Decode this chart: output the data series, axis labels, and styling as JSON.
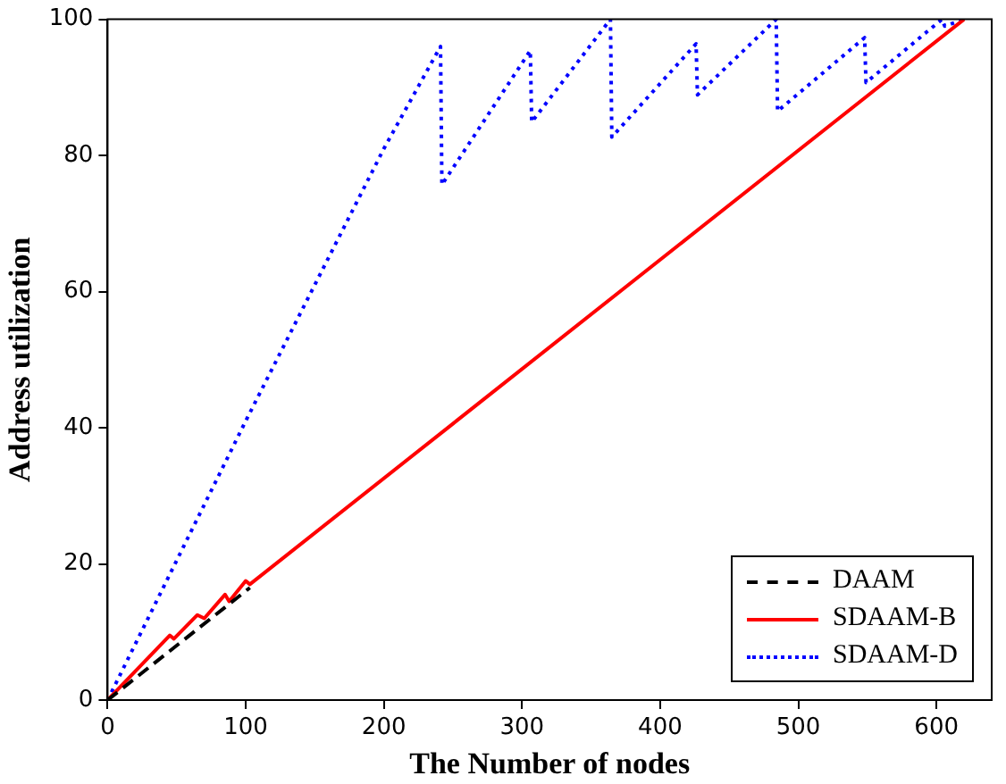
{
  "chart_data": {
    "type": "line",
    "xlabel": "The Number of nodes",
    "ylabel": "Address utilization",
    "xlim": [
      0,
      640
    ],
    "xticks": [
      0,
      100,
      200,
      300,
      400,
      500,
      600
    ],
    "ylim": [
      0,
      100
    ],
    "yticks": [
      0,
      20,
      40,
      60,
      80,
      100
    ],
    "legend": "bottom right",
    "marker": "none",
    "grid": false,
    "series": [
      {
        "name": "DAAM",
        "color": "#000000",
        "line_style": "dashed",
        "x": [
          0,
          103
        ],
        "values": [
          0,
          16.5
        ]
      },
      {
        "name": "SDAAM-B",
        "color": "#ff0000",
        "line_style": "solid",
        "x": [
          0,
          45,
          48,
          65,
          70,
          85,
          88,
          100,
          103,
          620
        ],
        "values": [
          0,
          9.5,
          9,
          12.5,
          12,
          15.5,
          14.5,
          17.5,
          17,
          100
        ]
      },
      {
        "name": "SDAAM-D",
        "color": "#0000ff",
        "line_style": "dotted",
        "x": [
          0,
          100,
          200,
          241,
          242,
          306,
          307,
          364,
          365,
          426,
          427,
          484,
          485,
          548,
          549,
          604,
          606,
          620
        ],
        "values": [
          0,
          41,
          81,
          96,
          75.7,
          95.4,
          84.9,
          100,
          82.7,
          96.4,
          88.9,
          100,
          86.5,
          97.3,
          90.7,
          100,
          99,
          100
        ]
      }
    ]
  }
}
